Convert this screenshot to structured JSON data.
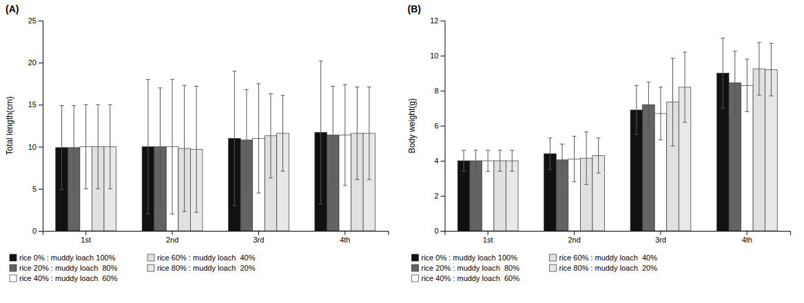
{
  "chart_data": [
    {
      "type": "bar",
      "title": "(A)",
      "ylabel": "Total length(cm)",
      "categories": [
        "1st",
        "2nd",
        "3rd",
        "4th"
      ],
      "ylim": [
        0,
        25
      ],
      "yticks": [
        0,
        5,
        10,
        15,
        20,
        25
      ],
      "grid": false,
      "legend": "bottom",
      "series": [
        {
          "name": "rice 0% : muddy loach 100%",
          "color": "#111111",
          "values": [
            9.9,
            10.0,
            11.0,
            11.7
          ],
          "errors": [
            5.0,
            8.0,
            8.0,
            8.5
          ]
        },
        {
          "name": "rice 20% : muddy loach  80%",
          "color": "#636363",
          "values": [
            9.9,
            10.0,
            10.8,
            11.4
          ],
          "errors": [
            5.0,
            7.0,
            6.0,
            5.8
          ]
        },
        {
          "name": "rice 40% : muddy loach  60%",
          "color": "#ffffff",
          "values": [
            10.0,
            10.0,
            11.0,
            11.4
          ],
          "errors": [
            5.0,
            8.0,
            6.5,
            6.0
          ]
        },
        {
          "name": "rice 60% : muddy loach  40%",
          "color": "#e0e0e0",
          "values": [
            10.0,
            9.8,
            11.3,
            11.6
          ],
          "errors": [
            5.0,
            7.5,
            5.0,
            5.5
          ]
        },
        {
          "name": "rice 80% : muddy loach  20%",
          "color": "#e8e8e8",
          "values": [
            10.0,
            9.7,
            11.6,
            11.6
          ],
          "errors": [
            5.0,
            7.5,
            4.5,
            5.5
          ]
        }
      ]
    },
    {
      "type": "bar",
      "title": "(B)",
      "ylabel": "Body weight(g)",
      "categories": [
        "1st",
        "2nd",
        "3rd",
        "4th"
      ],
      "ylim": [
        0,
        12
      ],
      "yticks": [
        0,
        2,
        4,
        6,
        8,
        10,
        12
      ],
      "grid": false,
      "legend": "bottom",
      "series": [
        {
          "name": "rice 0% : muddy loach 100%",
          "color": "#111111",
          "values": [
            4.0,
            4.4,
            6.9,
            9.0
          ],
          "errors": [
            0.6,
            0.9,
            1.4,
            2.0
          ]
        },
        {
          "name": "rice 20% : muddy loach  80%",
          "color": "#636363",
          "values": [
            4.0,
            4.05,
            7.2,
            8.45
          ],
          "errors": [
            0.6,
            0.9,
            1.3,
            1.8
          ]
        },
        {
          "name": "rice 40% : muddy loach  60%",
          "color": "#ffffff",
          "values": [
            4.0,
            4.1,
            6.7,
            8.3
          ],
          "errors": [
            0.6,
            1.3,
            1.5,
            1.5
          ]
        },
        {
          "name": "rice 60% : muddy loach  40%",
          "color": "#e0e0e0",
          "values": [
            4.0,
            4.15,
            7.35,
            9.25
          ],
          "errors": [
            0.6,
            1.5,
            2.5,
            1.5
          ]
        },
        {
          "name": "rice 80% : muddy loach  20%",
          "color": "#e8e8e8",
          "values": [
            4.0,
            4.3,
            8.2,
            9.2
          ],
          "errors": [
            0.6,
            1.0,
            2.0,
            1.5
          ]
        }
      ]
    }
  ]
}
